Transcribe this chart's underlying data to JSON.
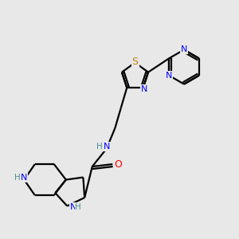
{
  "bg_color": "#e8e8e8",
  "atom_colors": {
    "C": "#000000",
    "N": "#0000ff",
    "O": "#ff0000",
    "S": "#b8860b",
    "H_label": "#4a9090"
  },
  "bond_color": "#000000",
  "line_width": 1.6,
  "figsize": [
    3.0,
    3.0
  ],
  "dpi": 100,
  "xlim": [
    0,
    10
  ],
  "ylim": [
    0,
    10
  ]
}
